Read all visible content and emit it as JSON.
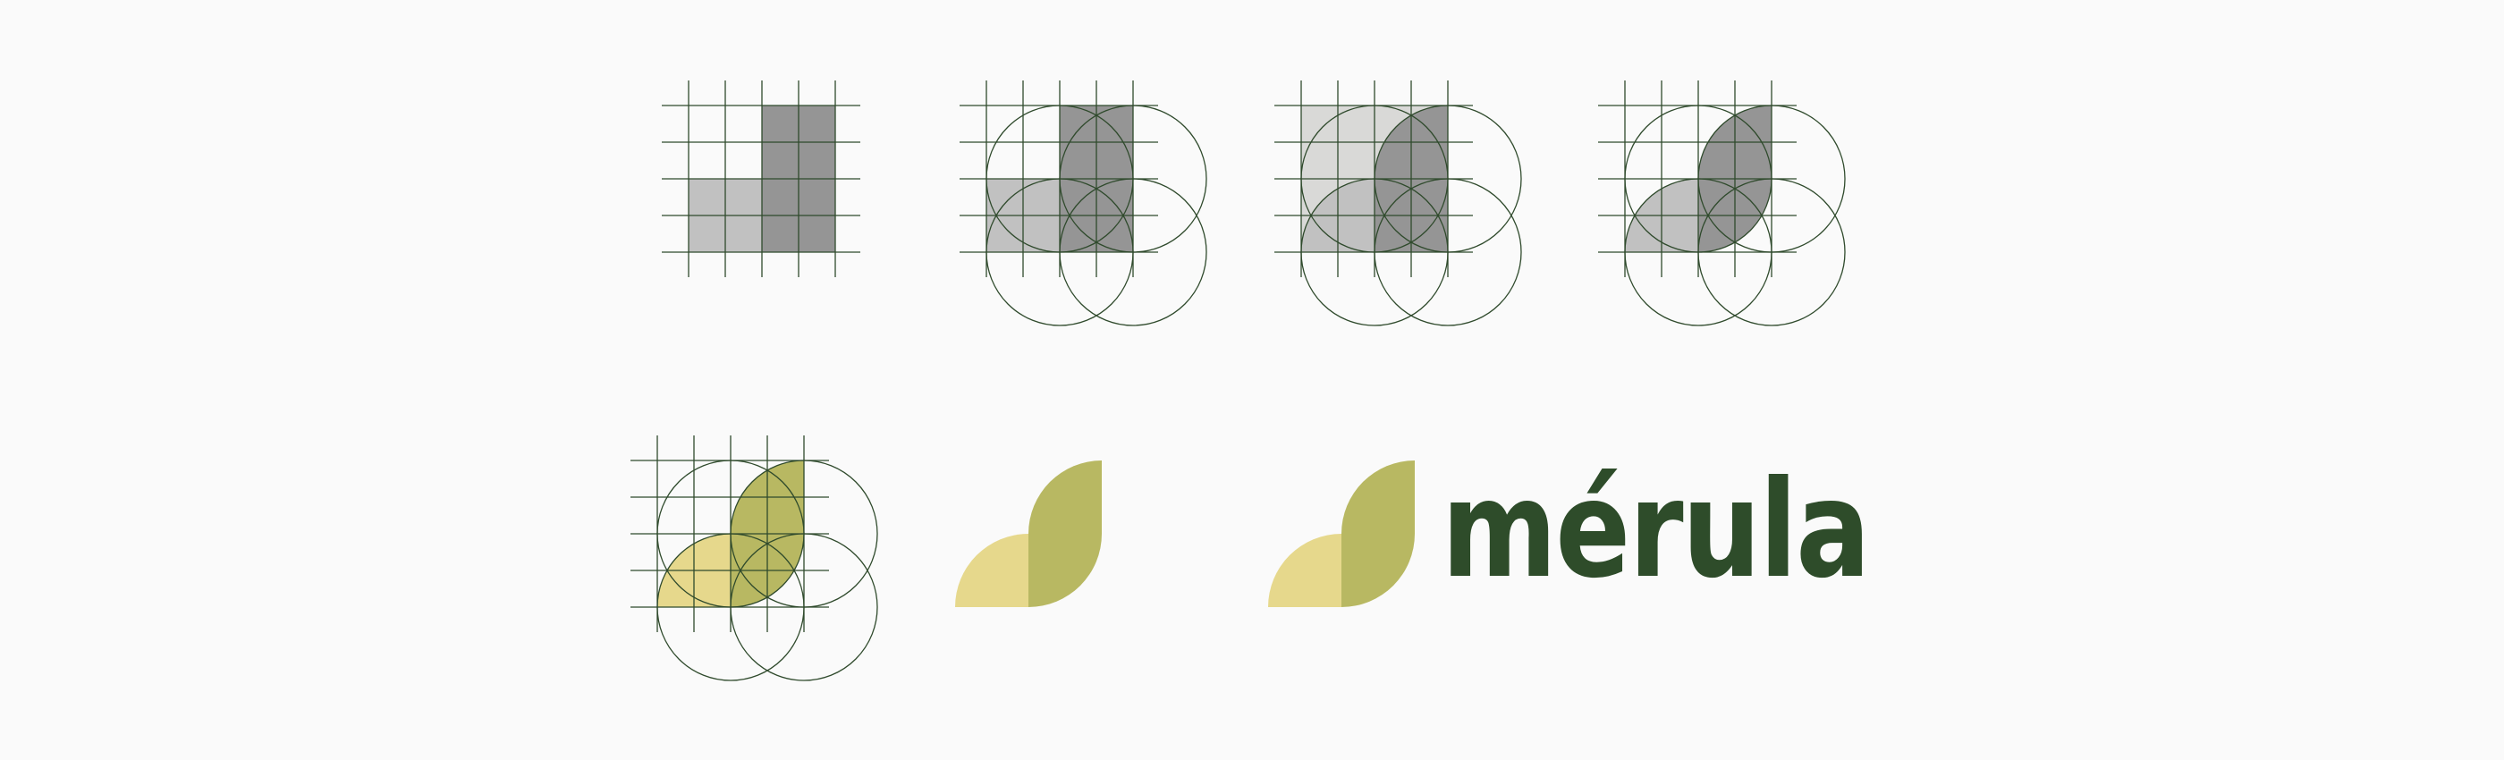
{
  "brand": {
    "wordmark": "mérula"
  },
  "colors": {
    "background": "#fafafa",
    "grid_line": "#2f4a2c",
    "gray_light": "#c1c1c1",
    "gray_lighter": "#d9d9d7",
    "gray_dark": "#959595",
    "yellow": "#e6d88c",
    "olive": "#b8b862",
    "wordmark": "#2e4c2a"
  },
  "steps": [
    {
      "name": "step-1-grid-blocks"
    },
    {
      "name": "step-2-circles-overlay"
    },
    {
      "name": "step-3-circle-cut"
    },
    {
      "name": "step-4-rounded-shapes"
    },
    {
      "name": "step-5-colored-construction"
    },
    {
      "name": "step-6-logomark"
    },
    {
      "name": "step-7-logo-with-wordmark"
    }
  ]
}
